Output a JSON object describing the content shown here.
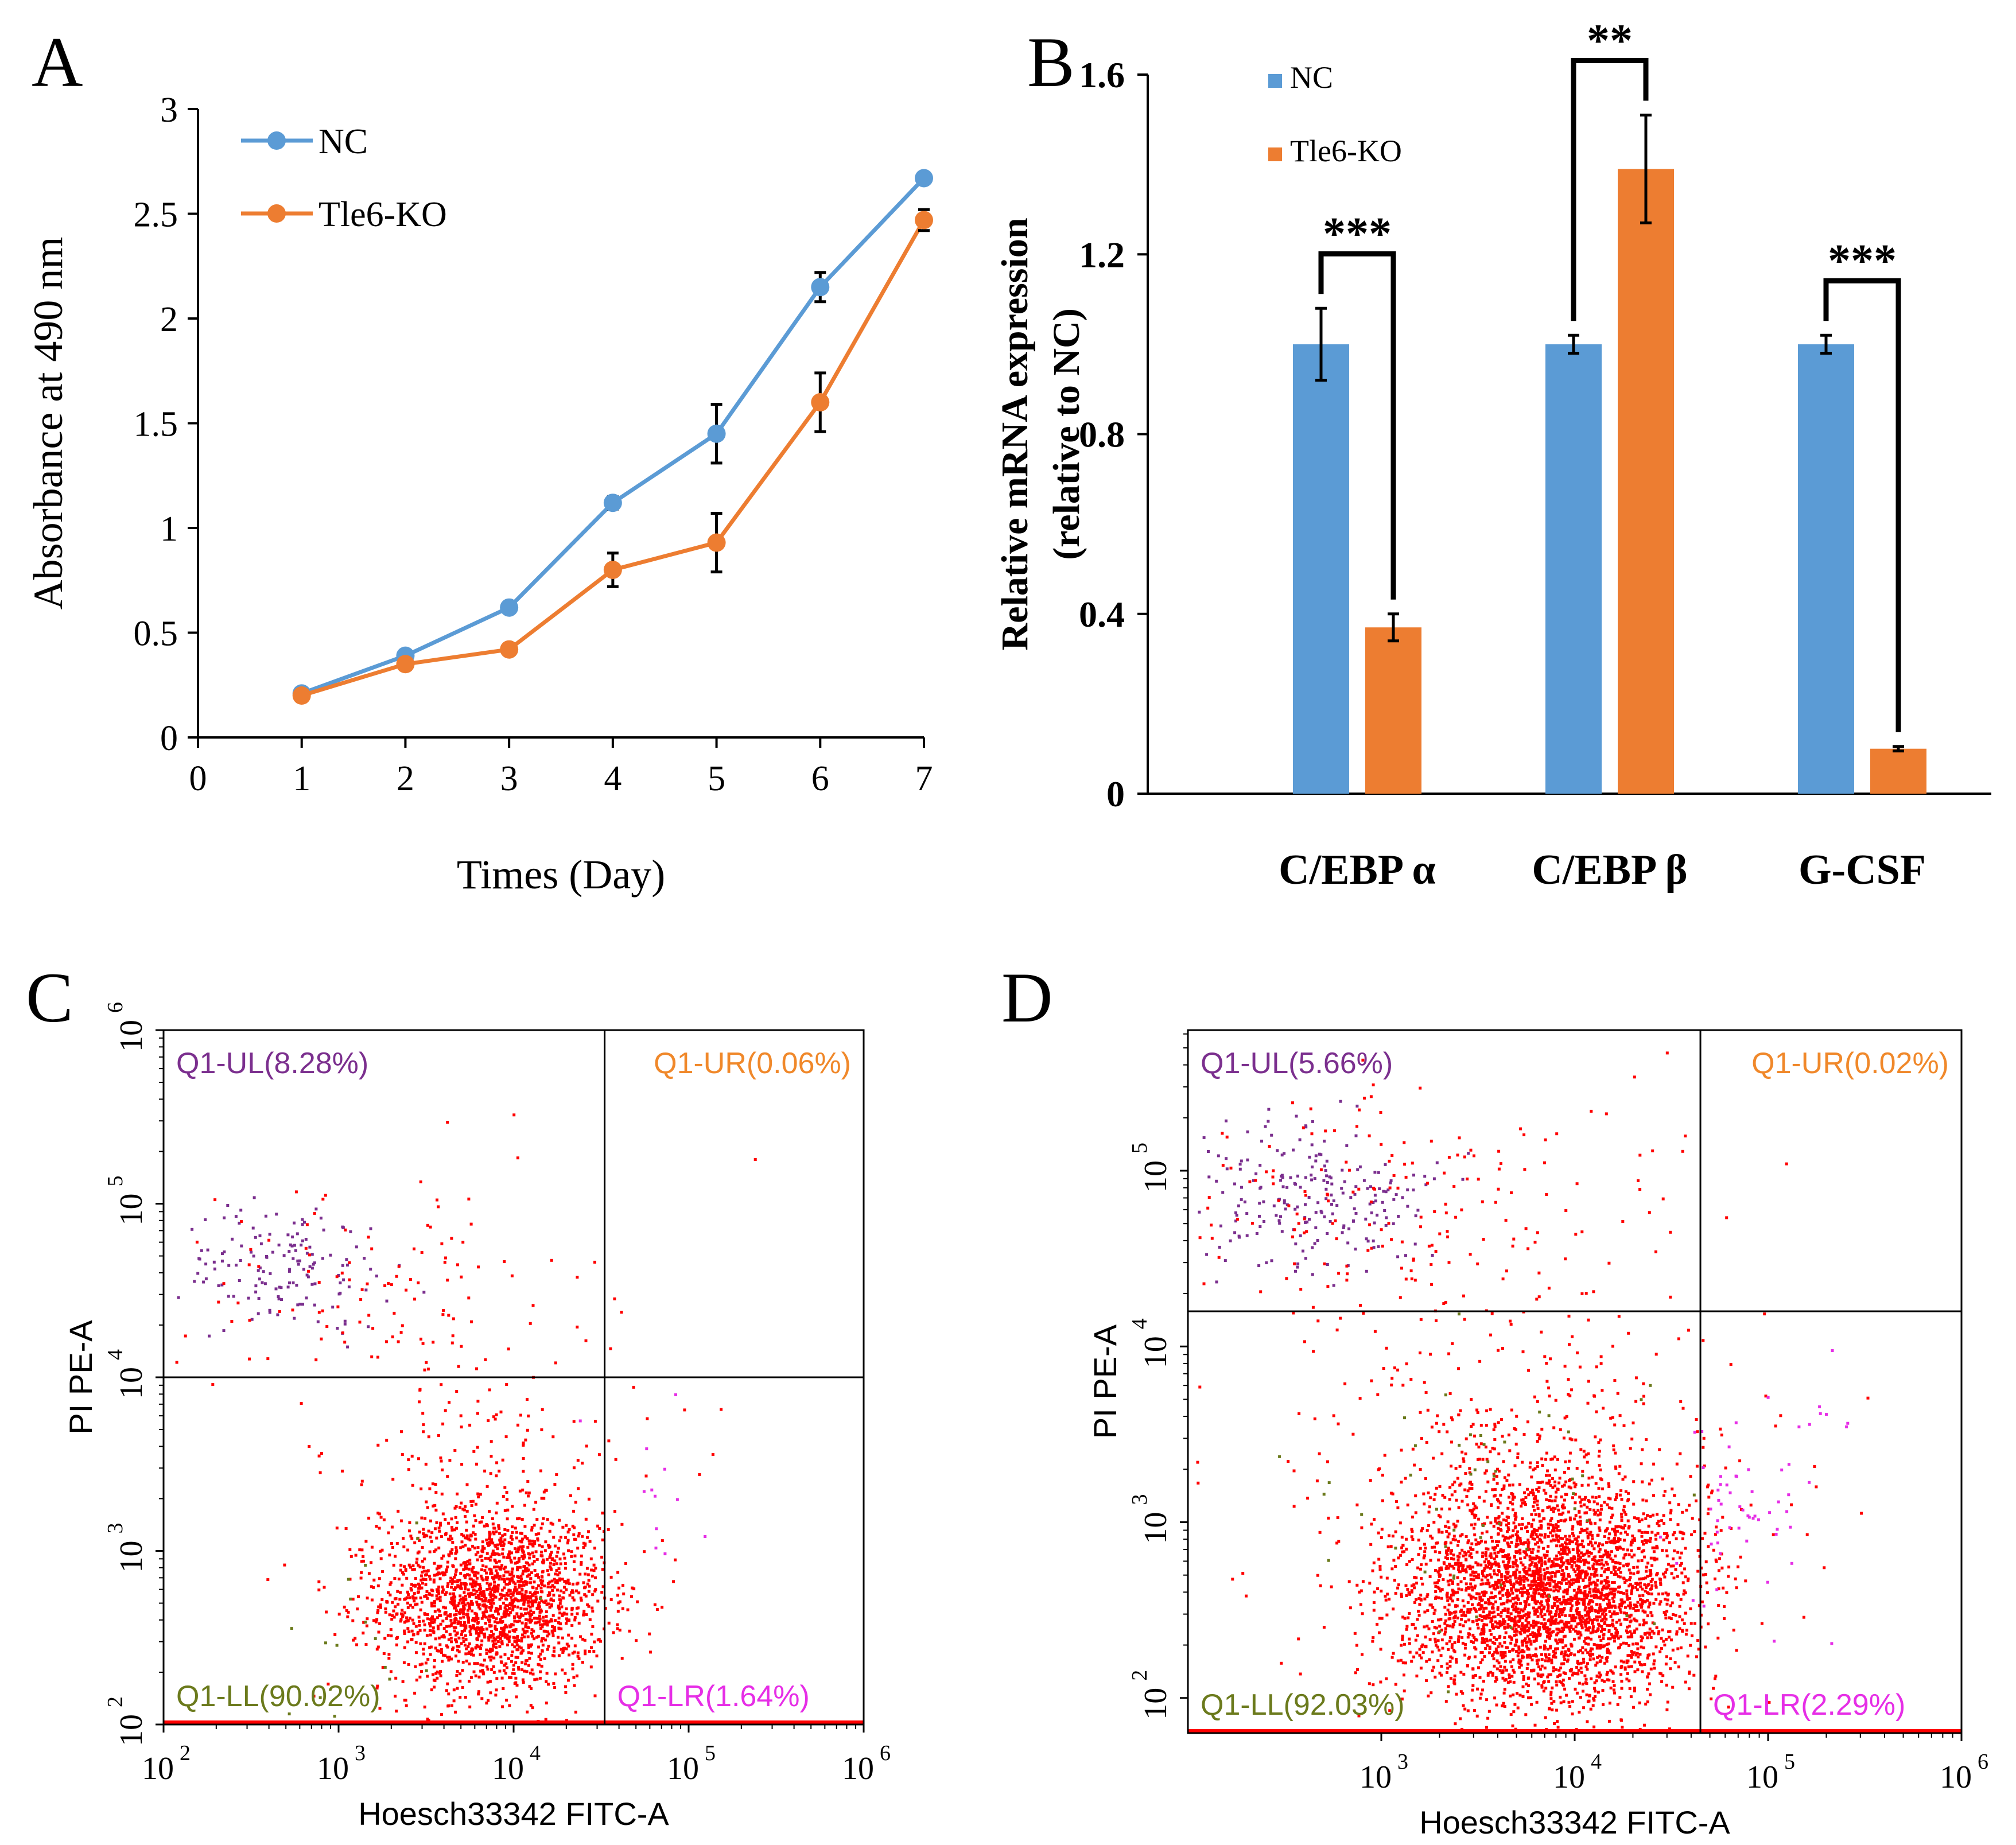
{
  "colors": {
    "nc": "#5b9bd5",
    "ko": "#ed7d31",
    "axis": "#000000",
    "purple": "#7b2f8e",
    "orange": "#f0882a",
    "olive": "#6b7a1c",
    "magenta": "#e62ee6",
    "red": "#ff0000"
  },
  "chart_data": [
    {
      "panel": "A",
      "type": "line",
      "xlabel": "Times (Day)",
      "ylabel": "Absorbance at 490 nm",
      "xlim": [
        0,
        7
      ],
      "ylim": [
        0,
        3
      ],
      "xticks": [
        "0",
        "1",
        "2",
        "3",
        "4",
        "5",
        "6",
        "7"
      ],
      "yticks": [
        "0",
        "0.5",
        "1",
        "1.5",
        "2",
        "2.5",
        "3"
      ],
      "x": [
        1,
        2,
        3,
        4,
        5,
        6,
        7
      ],
      "legend_position": "top-left",
      "series": [
        {
          "name": "NC",
          "values": [
            0.21,
            0.39,
            0.62,
            1.12,
            1.45,
            2.15,
            2.67
          ],
          "errors": [
            0.01,
            0.01,
            0.02,
            0.03,
            0.14,
            0.07,
            0.02
          ]
        },
        {
          "name": "Tle6-KO",
          "values": [
            0.2,
            0.35,
            0.42,
            0.8,
            0.93,
            1.6,
            2.47
          ],
          "errors": [
            0.01,
            0.01,
            0.01,
            0.08,
            0.14,
            0.14,
            0.05
          ]
        }
      ]
    },
    {
      "panel": "B",
      "type": "bar",
      "ylabel_line1": "Relative mRNA expression",
      "ylabel_line2": "(relative to NC)",
      "ylim": [
        0,
        1.6
      ],
      "yticks": [
        "0",
        "0.4",
        "0.8",
        "1.2",
        "1.6"
      ],
      "categories": [
        "C/EBP α",
        "C/EBP β",
        "G-CSF"
      ],
      "legend_position": "top-left",
      "series": [
        {
          "name": "NC",
          "values": [
            1.0,
            1.0,
            1.0
          ],
          "errors": [
            0.08,
            0.02,
            0.02
          ]
        },
        {
          "name": "Tle6-KO",
          "values": [
            0.37,
            1.39,
            0.1
          ],
          "errors": [
            0.03,
            0.12,
            0.005
          ]
        }
      ],
      "significance": [
        "***",
        "**",
        "***"
      ]
    },
    {
      "panel": "C",
      "type": "scatter",
      "xlabel": "Hoesch33342 FITC-A",
      "ylabel": "PI PE-A",
      "x_log_range": [
        2,
        6
      ],
      "y_log_range": [
        2,
        6
      ],
      "x_gate": 4.52,
      "y_gate": 4,
      "xticks": [
        {
          "base": "10",
          "exp": "2",
          "pos": 2
        },
        {
          "base": "10",
          "exp": "3",
          "pos": 3
        },
        {
          "base": "10",
          "exp": "4",
          "pos": 4
        },
        {
          "base": "10",
          "exp": "5",
          "pos": 5
        },
        {
          "base": "10",
          "exp": "6",
          "pos": 6
        }
      ],
      "yticks": [
        {
          "base": "10",
          "exp": "2",
          "pos": 2
        },
        {
          "base": "10",
          "exp": "3",
          "pos": 3
        },
        {
          "base": "10",
          "exp": "4",
          "pos": 4
        },
        {
          "base": "10",
          "exp": "5",
          "pos": 5
        },
        {
          "base": "10",
          "exp": "6",
          "pos": 6
        }
      ],
      "quadrants": {
        "ul": "Q1-UL(8.28%)",
        "ur": "Q1-UR(0.06%)",
        "ll": "Q1-LL(90.02%)",
        "lr": "Q1-LR(1.64%)"
      },
      "clusters": [
        {
          "color_key": "red",
          "count": 1900,
          "cx": 3.88,
          "cy": 2.72,
          "sx": 0.32,
          "sy": 0.26
        },
        {
          "color_key": "red",
          "count": 220,
          "cx": 3.8,
          "cy": 3.3,
          "sx": 0.48,
          "sy": 0.45
        },
        {
          "color_key": "purple",
          "count": 150,
          "cx": 2.7,
          "cy": 4.65,
          "sx": 0.3,
          "sy": 0.18
        },
        {
          "color_key": "red",
          "count": 120,
          "cx": 3.2,
          "cy": 4.5,
          "sx": 0.6,
          "sy": 0.35
        },
        {
          "color_key": "magenta",
          "count": 12,
          "cx": 4.85,
          "cy": 3.2,
          "sx": 0.22,
          "sy": 0.35
        },
        {
          "color_key": "olive",
          "count": 20,
          "cx": 3.2,
          "cy": 2.5,
          "sx": 0.4,
          "sy": 0.4
        }
      ]
    },
    {
      "panel": "D",
      "type": "scatter",
      "xlabel": "Hoesch33342 FITC-A",
      "ylabel": "PI PE-A",
      "x_log_range": [
        2,
        6
      ],
      "y_log_range": [
        1.8,
        5.8
      ],
      "x_gate": 4.65,
      "y_gate": 4.2,
      "xticks": [
        {
          "base": "10",
          "exp": "3",
          "pos": 3
        },
        {
          "base": "10",
          "exp": "4",
          "pos": 4
        },
        {
          "base": "10",
          "exp": "5",
          "pos": 5
        },
        {
          "base": "10",
          "exp": "6",
          "pos": 6
        }
      ],
      "yticks": [
        {
          "base": "10",
          "exp": "2",
          "pos": 2
        },
        {
          "base": "10",
          "exp": "3",
          "pos": 3
        },
        {
          "base": "10",
          "exp": "4",
          "pos": 4
        },
        {
          "base": "10",
          "exp": "5",
          "pos": 5
        }
      ],
      "quadrants": {
        "ul": "Q1-UL(5.66%)",
        "ur": "Q1-UR(0.02%)",
        "ll": "Q1-LL(92.03%)",
        "lr": "Q1-LR(2.29%)"
      },
      "clusters": [
        {
          "color_key": "red",
          "count": 3200,
          "cx": 3.85,
          "cy": 2.6,
          "sx": 0.38,
          "sy": 0.32
        },
        {
          "color_key": "red",
          "count": 500,
          "cx": 3.7,
          "cy": 3.2,
          "sx": 0.55,
          "sy": 0.5
        },
        {
          "color_key": "purple",
          "count": 230,
          "cx": 2.6,
          "cy": 4.85,
          "sx": 0.35,
          "sy": 0.22
        },
        {
          "color_key": "red",
          "count": 200,
          "cx": 3.1,
          "cy": 4.75,
          "sx": 0.7,
          "sy": 0.35
        },
        {
          "color_key": "magenta",
          "count": 60,
          "cx": 4.95,
          "cy": 3.1,
          "sx": 0.2,
          "sy": 0.35
        },
        {
          "color_key": "olive",
          "count": 50,
          "cx": 3.6,
          "cy": 3.2,
          "sx": 0.5,
          "sy": 0.5
        }
      ]
    }
  ]
}
